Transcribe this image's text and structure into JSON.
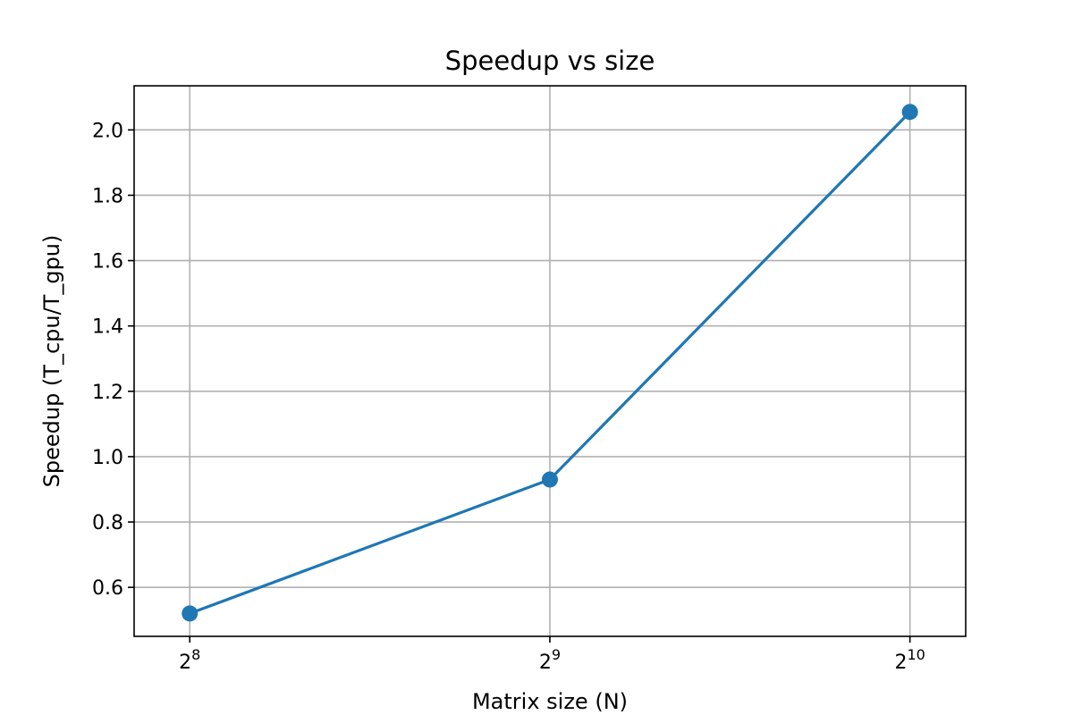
{
  "chart_data": {
    "type": "line",
    "title": "Speedup vs size",
    "xlabel": "Matrix size (N)",
    "ylabel": "Speedup (T_cpu/T_gpu)",
    "x_scale": "log2",
    "x": [
      256,
      512,
      1024
    ],
    "x_tick_labels": [
      {
        "base": "2",
        "exponent": "8"
      },
      {
        "base": "2",
        "exponent": "9"
      },
      {
        "base": "2",
        "exponent": "10"
      }
    ],
    "xlim": [
      230,
      1140
    ],
    "ylim": [
      0.45,
      2.135
    ],
    "y_ticks": [
      0.6,
      0.8,
      1.0,
      1.2,
      1.4,
      1.6,
      1.8,
      2.0
    ],
    "y_tick_labels": [
      "0.6",
      "0.8",
      "1.0",
      "1.2",
      "1.4",
      "1.6",
      "1.8",
      "2.0"
    ],
    "series": [
      {
        "name": "Speedup",
        "values": [
          0.52,
          0.93,
          2.055
        ],
        "color": "#1f77b4",
        "marker": "circle"
      }
    ],
    "grid": true,
    "legend": "none"
  }
}
